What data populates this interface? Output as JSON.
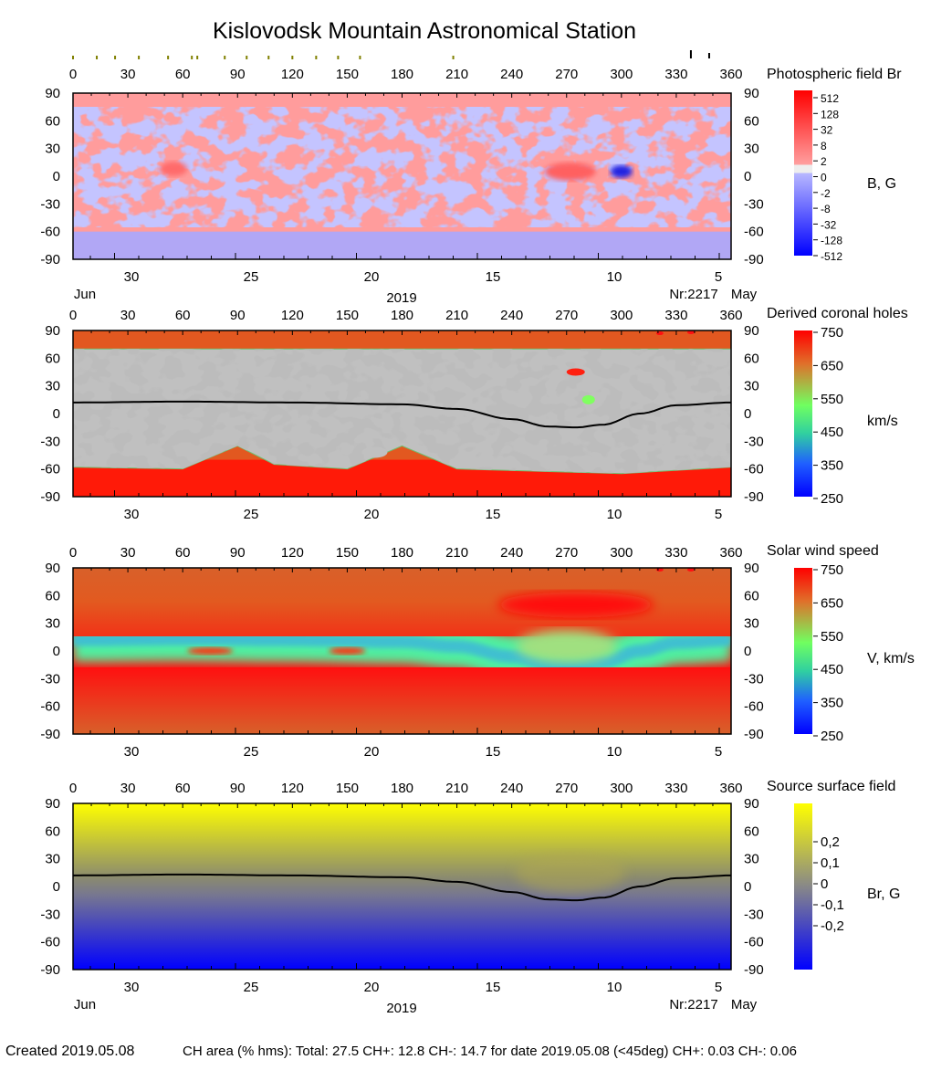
{
  "title": "Kislovodsk Mountain Astronomical Station",
  "footer": {
    "created": "Created  2019.05.08",
    "ch_area": "CH area (% hms): Total: 27.5 CH+: 12.8   CH-: 14.7 for date 2019.05.08 (<45deg) CH+: 0.03    CH-: 0.06"
  },
  "chart_data": [
    {
      "type": "heatmap",
      "title": "Photospheric field Br",
      "colorbar_label": "B, G",
      "colorbar_ticks": [
        "512",
        "128",
        "32",
        "8",
        "2",
        "0",
        "-2",
        "-8",
        "-32",
        "-128",
        "-512"
      ],
      "colors": {
        "positive": "#ff0000",
        "weak_positive": "#ffa0a0",
        "zero": "#eeeeee",
        "weak_negative": "#b0b0ff",
        "negative": "#0000ff"
      },
      "x_ticks": [
        "0",
        "30",
        "60",
        "90",
        "120",
        "150",
        "180",
        "210",
        "240",
        "270",
        "300",
        "330",
        "360"
      ],
      "y_ticks": [
        "90",
        "60",
        "30",
        "0",
        "-30",
        "-60",
        "-90"
      ],
      "date_ticks": [
        "30",
        "25",
        "20",
        "15",
        "10",
        "5"
      ],
      "date_labels": {
        "left": "Jun",
        "center": "2019",
        "rotation": "Nr:2217",
        "right": "May"
      },
      "marker_longitudes_olive": [
        0,
        13,
        23,
        36,
        52,
        65,
        68,
        83,
        95,
        107,
        120,
        133,
        145,
        157,
        208
      ],
      "marker_longitudes_black": [
        338,
        348
      ]
    },
    {
      "type": "heatmap",
      "title": "Derived coronal holes",
      "colorbar_label": "km/s",
      "colorbar_ticks": [
        "750",
        "650",
        "550",
        "450",
        "350",
        "250"
      ],
      "x_ticks": [
        "0",
        "30",
        "60",
        "90",
        "120",
        "150",
        "180",
        "210",
        "240",
        "270",
        "300",
        "330",
        "360"
      ],
      "y_ticks": [
        "90",
        "60",
        "30",
        "0",
        "-30",
        "-60",
        "-90"
      ],
      "date_ticks": [
        "30",
        "25",
        "20",
        "15",
        "10",
        "5"
      ],
      "neutral_line": {
        "lon": [
          0,
          60,
          120,
          180,
          210,
          240,
          260,
          275,
          290,
          310,
          330,
          360
        ],
        "lat": [
          12,
          13,
          12,
          10,
          5,
          -6,
          -14,
          -15,
          -12,
          0,
          9,
          12
        ]
      }
    },
    {
      "type": "heatmap",
      "title": "Solar wind speed",
      "colorbar_label": "V, km/s",
      "colorbar_ticks": [
        "750",
        "650",
        "550",
        "450",
        "350",
        "250"
      ],
      "x_ticks": [
        "0",
        "30",
        "60",
        "90",
        "120",
        "150",
        "180",
        "210",
        "240",
        "270",
        "300",
        "330",
        "360"
      ],
      "y_ticks": [
        "90",
        "60",
        "30",
        "0",
        "-30",
        "-60",
        "-90"
      ],
      "date_ticks": [
        "30",
        "25",
        "20",
        "15",
        "10",
        "5"
      ]
    },
    {
      "type": "heatmap",
      "title": "Source surface field",
      "colorbar_label": "Br, G",
      "colorbar_ticks": [
        "0,2",
        "0,1",
        "0",
        "-0,1",
        "-0,2"
      ],
      "x_ticks": [
        "0",
        "30",
        "60",
        "90",
        "120",
        "150",
        "180",
        "210",
        "240",
        "270",
        "300",
        "330",
        "360"
      ],
      "y_ticks": [
        "90",
        "60",
        "30",
        "0",
        "-30",
        "-60",
        "-90"
      ],
      "date_ticks": [
        "30",
        "25",
        "20",
        "15",
        "10",
        "5"
      ],
      "date_labels": {
        "left": "Jun",
        "center": "2019",
        "rotation": "Nr:2217",
        "right": "May"
      }
    }
  ]
}
